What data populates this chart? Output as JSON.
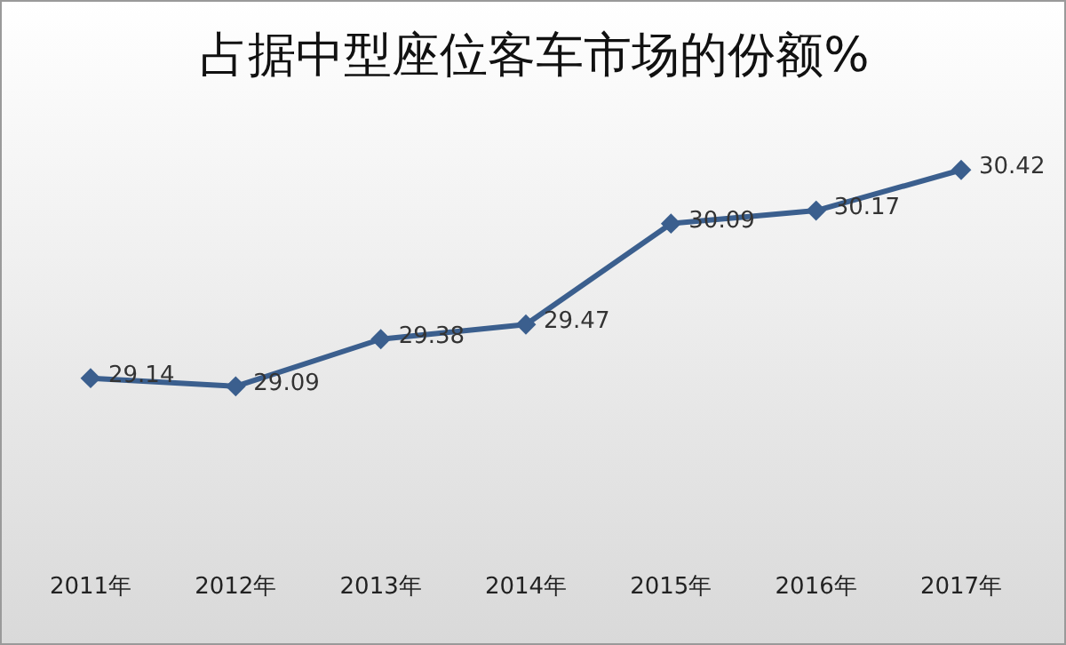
{
  "chart_data": {
    "type": "line",
    "title": "占据中型座位客车市场的份额%",
    "categories": [
      "2011年",
      "2012年",
      "2013年",
      "2014年",
      "2015年",
      "2016年",
      "2017年"
    ],
    "series": [
      {
        "color": "#3b5f8e",
        "values": [
          29.14,
          29.09,
          29.38,
          29.47,
          30.09,
          30.17,
          30.42
        ]
      }
    ],
    "data_labels": true,
    "marker": "diamond",
    "grid": false,
    "legend": false,
    "tick_labels": "x"
  }
}
